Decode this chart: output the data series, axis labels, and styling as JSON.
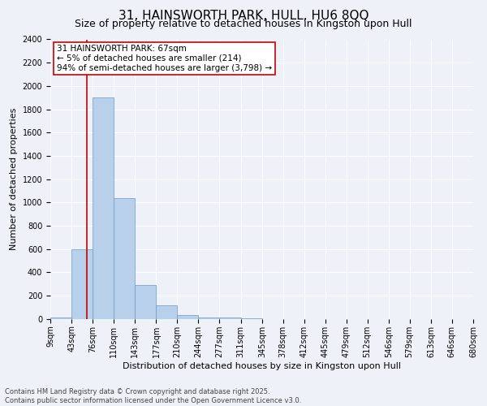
{
  "title": "31, HAINSWORTH PARK, HULL, HU6 8QQ",
  "subtitle": "Size of property relative to detached houses in Kingston upon Hull",
  "xlabel": "Distribution of detached houses by size in Kingston upon Hull",
  "ylabel": "Number of detached properties",
  "footnote": "Contains HM Land Registry data © Crown copyright and database right 2025.\nContains public sector information licensed under the Open Government Licence v3.0.",
  "bins": [
    9,
    43,
    76,
    110,
    143,
    177,
    210,
    244,
    277,
    311,
    345,
    378,
    412,
    445,
    479,
    512,
    546,
    579,
    613,
    646,
    680
  ],
  "bar_heights": [
    15,
    600,
    1900,
    1040,
    290,
    115,
    35,
    15,
    10,
    5,
    2,
    1,
    0,
    0,
    0,
    0,
    0,
    0,
    0,
    0
  ],
  "bar_color": "#b8d0ea",
  "bar_edge_color": "#6699cc",
  "property_line_x": 67,
  "property_line_color": "#cc0000",
  "annotation_text": "31 HAINSWORTH PARK: 67sqm\n← 5% of detached houses are smaller (214)\n94% of semi-detached houses are larger (3,798) →",
  "annotation_box_color": "#cc0000",
  "annotation_box_fill": "#ffffff",
  "ylim": [
    0,
    2400
  ],
  "yticks": [
    0,
    200,
    400,
    600,
    800,
    1000,
    1200,
    1400,
    1600,
    1800,
    2000,
    2200,
    2400
  ],
  "background_color": "#eef2f8",
  "plot_background": "#eef2f8",
  "grid_color": "#ffffff",
  "title_fontsize": 11,
  "subtitle_fontsize": 9,
  "label_fontsize": 8,
  "tick_fontsize": 7,
  "annotation_fontsize": 7.5,
  "footnote_fontsize": 6
}
